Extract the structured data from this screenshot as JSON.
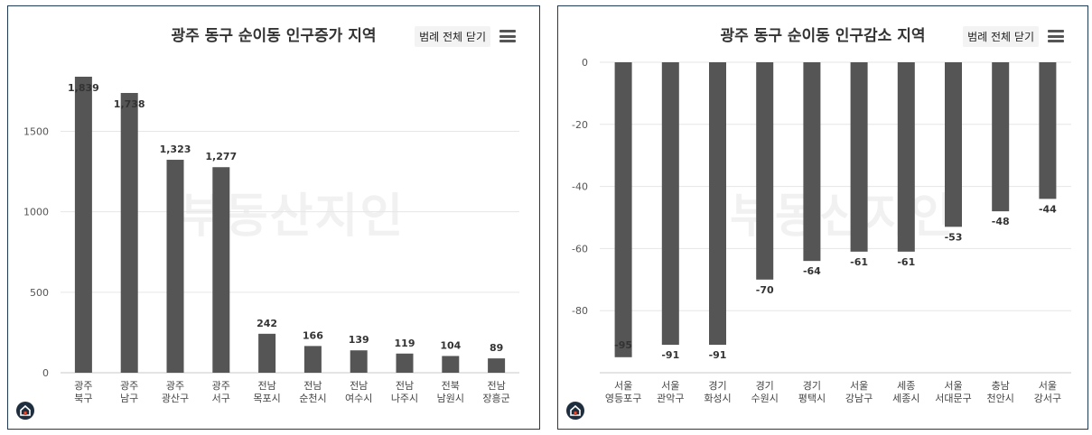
{
  "charts": [
    {
      "title": "광주 동구 순이동 인구증가 지역",
      "legend_close_label": "범례 전체 닫기",
      "menu_icon": "hamburger-menu-icon",
      "home_icon": "home-logo-icon",
      "watermark": "부동산지인",
      "bar_color": "#555555"
    },
    {
      "title": "광주 동구 순이동 인구감소 지역",
      "legend_close_label": "범례 전체 닫기",
      "menu_icon": "hamburger-menu-icon",
      "home_icon": "home-logo-icon",
      "watermark": "부동산지인",
      "bar_color": "#555555"
    }
  ],
  "chart_data": [
    {
      "type": "bar",
      "title": "광주 동구 순이동 인구증가 지역",
      "categories": [
        [
          "광주",
          "북구"
        ],
        [
          "광주",
          "남구"
        ],
        [
          "광주",
          "광산구"
        ],
        [
          "광주",
          "서구"
        ],
        [
          "전남",
          "목포시"
        ],
        [
          "전남",
          "순천시"
        ],
        [
          "전남",
          "여수시"
        ],
        [
          "전남",
          "나주시"
        ],
        [
          "전북",
          "남원시"
        ],
        [
          "전남",
          "장흥군"
        ]
      ],
      "values": [
        1839,
        1738,
        1323,
        1277,
        242,
        166,
        139,
        119,
        104,
        89
      ],
      "value_labels": [
        "1,839",
        "1,738",
        "1,323",
        "1,277",
        "242",
        "166",
        "139",
        "119",
        "104",
        "89"
      ],
      "yticks": [
        0,
        500,
        1000,
        1500
      ],
      "ylim": [
        0,
        1839
      ],
      "grid": true,
      "legend": "none"
    },
    {
      "type": "bar",
      "title": "광주 동구 순이동 인구감소 지역",
      "categories": [
        [
          "서울",
          "영등포구"
        ],
        [
          "서울",
          "관악구"
        ],
        [
          "경기",
          "화성시"
        ],
        [
          "경기",
          "수원시"
        ],
        [
          "경기",
          "평택시"
        ],
        [
          "서울",
          "강남구"
        ],
        [
          "세종",
          "세종시"
        ],
        [
          "서울",
          "서대문구"
        ],
        [
          "충남",
          "천안시"
        ],
        [
          "서울",
          "강서구"
        ]
      ],
      "values": [
        -95,
        -91,
        -91,
        -70,
        -64,
        -61,
        -61,
        -53,
        -48,
        -44
      ],
      "value_labels": [
        "-95",
        "-91",
        "-91",
        "-70",
        "-64",
        "-61",
        "-61",
        "-53",
        "-48",
        "-44"
      ],
      "yticks": [
        0,
        -20,
        -40,
        -60,
        -80
      ],
      "ylim": [
        -100,
        0
      ],
      "grid": true,
      "legend": "none"
    }
  ]
}
